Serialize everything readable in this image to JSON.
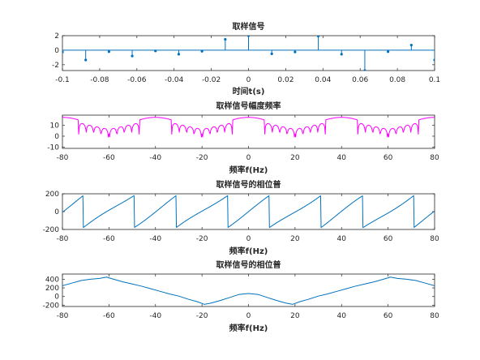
{
  "chart_data": [
    {
      "type": "stem",
      "title": "取样信号",
      "xlabel": "时间t(s)",
      "ylabel": "",
      "xlim": [
        -0.1,
        0.1
      ],
      "ylim": [
        -2.8,
        2
      ],
      "xticks": [
        "-0.1",
        "-0.08",
        "-0.06",
        "-0.04",
        "-0.02",
        "0",
        "0.02",
        "0.04",
        "0.06",
        "0.08",
        "0.1"
      ],
      "yticks": [
        "-2",
        "0",
        "2"
      ],
      "color": "#0072BD",
      "points": [
        [
          -0.1,
          -0.25
        ],
        [
          -0.0875,
          -1.35
        ],
        [
          -0.075,
          -0.2
        ],
        [
          -0.0625,
          -0.8
        ],
        [
          -0.05,
          -0.1
        ],
        [
          -0.0375,
          -0.55
        ],
        [
          -0.025,
          -0.15
        ],
        [
          -0.0125,
          1.5
        ],
        [
          0,
          2.0
        ],
        [
          0.0125,
          -0.5
        ],
        [
          0.025,
          -0.25
        ],
        [
          0.0375,
          1.95
        ],
        [
          0.05,
          -0.55
        ],
        [
          0.0625,
          -2.8
        ],
        [
          0.075,
          -0.2
        ],
        [
          0.0875,
          0.7
        ],
        [
          0.1,
          -1.35
        ]
      ]
    },
    {
      "type": "line",
      "title": "取样信号幅度频率",
      "xlabel": "频率f(Hz)",
      "ylabel": "",
      "xlim": [
        -80,
        80
      ],
      "ylim": [
        -11,
        19
      ],
      "xticks": [
        "-80",
        "-60",
        "-40",
        "-20",
        "0",
        "20",
        "40",
        "60",
        "80"
      ],
      "yticks": [
        "-10",
        "0",
        "10"
      ],
      "color": "#FF00FF",
      "note_period": 40,
      "series": [
        {
          "x": [],
          "y": []
        }
      ]
    },
    {
      "type": "line",
      "title": "取样信号的相位普",
      "xlabel": "频率f(Hz)",
      "ylabel": "",
      "xlim": [
        -80,
        80
      ],
      "ylim": [
        -200,
        200
      ],
      "xticks": [
        "-80",
        "-60",
        "-40",
        "-20",
        "0",
        "20",
        "40",
        "60",
        "80"
      ],
      "yticks": [
        "-200",
        "0",
        "200"
      ],
      "color": "#0072BD",
      "series": [
        {
          "x": [],
          "y": []
        }
      ]
    },
    {
      "type": "line",
      "title": "取样信号的相位普",
      "xlabel": "频率f(Hz)",
      "ylabel": "",
      "xlim": [
        -80,
        80
      ],
      "ylim": [
        -230,
        520
      ],
      "xticks": [
        "-80",
        "-60",
        "-40",
        "-20",
        "0",
        "20",
        "40",
        "60",
        "80"
      ],
      "yticks": [
        "-200",
        "0",
        "200",
        "400"
      ],
      "color": "#0072BD",
      "series": [
        {
          "x": [
            -80,
            -76,
            -72,
            -68,
            -64,
            -61,
            -58,
            -54,
            -50,
            -46,
            -42,
            -38,
            -34,
            -30,
            -26,
            -22,
            -19,
            -16,
            -12,
            -8,
            -4,
            0,
            4,
            8,
            12,
            16,
            19,
            22,
            26,
            30,
            34,
            38,
            42,
            46,
            50,
            54,
            58,
            61,
            64,
            68,
            72,
            76,
            80
          ],
          "y": [
            250,
            310,
            370,
            400,
            420,
            450,
            400,
            340,
            290,
            240,
            180,
            120,
            60,
            10,
            -60,
            -120,
            -180,
            -150,
            -90,
            -20,
            50,
            70,
            50,
            -20,
            -90,
            -150,
            -180,
            -120,
            -60,
            10,
            60,
            120,
            180,
            240,
            290,
            340,
            400,
            450,
            420,
            400,
            370,
            310,
            250
          ]
        }
      ]
    }
  ]
}
